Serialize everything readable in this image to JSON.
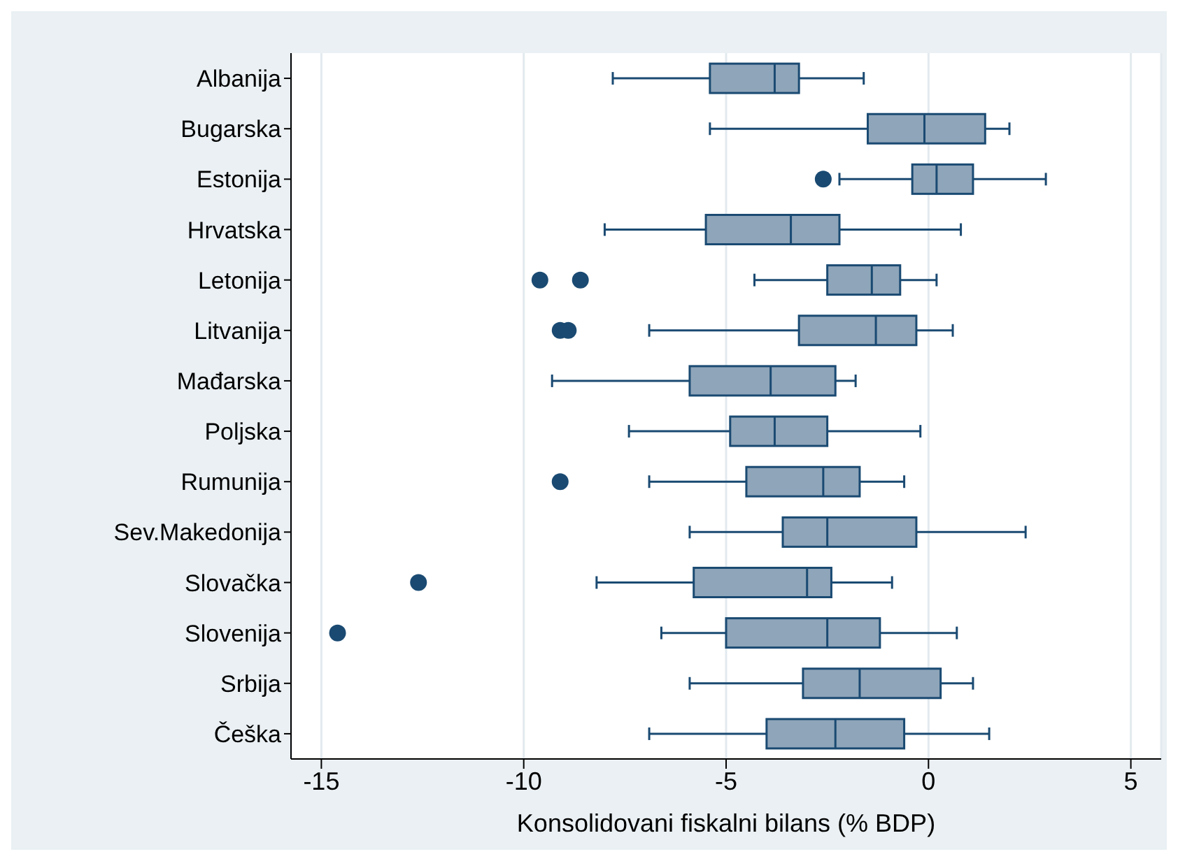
{
  "chart_data": {
    "type": "box",
    "orientation": "horizontal",
    "xlabel": "Konsolidovani fiskalni bilans (% BDP)",
    "categories": [
      "Albanija",
      "Bugarska",
      "Estonija",
      "Hrvatska",
      "Letonija",
      "Litvanija",
      "Mađarska",
      "Poljska",
      "Rumunija",
      "Sev.Makedonija",
      "Slovačka",
      "Slovenija",
      "Srbija",
      "Češka"
    ],
    "boxes": [
      {
        "low": -7.8,
        "q1": -5.4,
        "median": -3.8,
        "q3": -3.2,
        "high": -1.6
      },
      {
        "low": -5.4,
        "q1": -1.5,
        "median": -0.1,
        "q3": 1.4,
        "high": 2.0
      },
      {
        "low": -2.2,
        "q1": -0.4,
        "median": 0.2,
        "q3": 1.1,
        "high": 2.9,
        "outliers": [
          -2.6
        ]
      },
      {
        "low": -8.0,
        "q1": -5.5,
        "median": -3.4,
        "q3": -2.2,
        "high": 0.8
      },
      {
        "low": -4.3,
        "q1": -2.5,
        "median": -1.4,
        "q3": -0.7,
        "high": 0.2,
        "outliers": [
          -9.6,
          -8.6
        ]
      },
      {
        "low": -6.9,
        "q1": -3.2,
        "median": -1.3,
        "q3": -0.3,
        "high": 0.6,
        "outliers": [
          -9.1,
          -8.9
        ]
      },
      {
        "low": -9.3,
        "q1": -5.9,
        "median": -3.9,
        "q3": -2.3,
        "high": -1.8
      },
      {
        "low": -7.4,
        "q1": -4.9,
        "median": -3.8,
        "q3": -2.5,
        "high": -0.2
      },
      {
        "low": -6.9,
        "q1": -4.5,
        "median": -2.6,
        "q3": -1.7,
        "high": -0.6,
        "outliers": [
          -9.1
        ]
      },
      {
        "low": -5.9,
        "q1": -3.6,
        "median": -2.5,
        "q3": -0.3,
        "high": 2.4
      },
      {
        "low": -8.2,
        "q1": -5.8,
        "median": -3.0,
        "q3": -2.4,
        "high": -0.9,
        "outliers": [
          -12.6
        ]
      },
      {
        "low": -6.6,
        "q1": -5.0,
        "median": -2.5,
        "q3": -1.2,
        "high": 0.7,
        "outliers": [
          -14.6
        ]
      },
      {
        "low": -5.9,
        "q1": -3.1,
        "median": -1.7,
        "q3": 0.3,
        "high": 1.1
      },
      {
        "low": -6.9,
        "q1": -4.0,
        "median": -2.3,
        "q3": -0.6,
        "high": 1.5
      }
    ],
    "color": "#8fa5b9",
    "xlim": [
      -15.75,
      5.75
    ],
    "xticks": [
      -15,
      -10,
      -5,
      0,
      5
    ],
    "grid": "x"
  }
}
